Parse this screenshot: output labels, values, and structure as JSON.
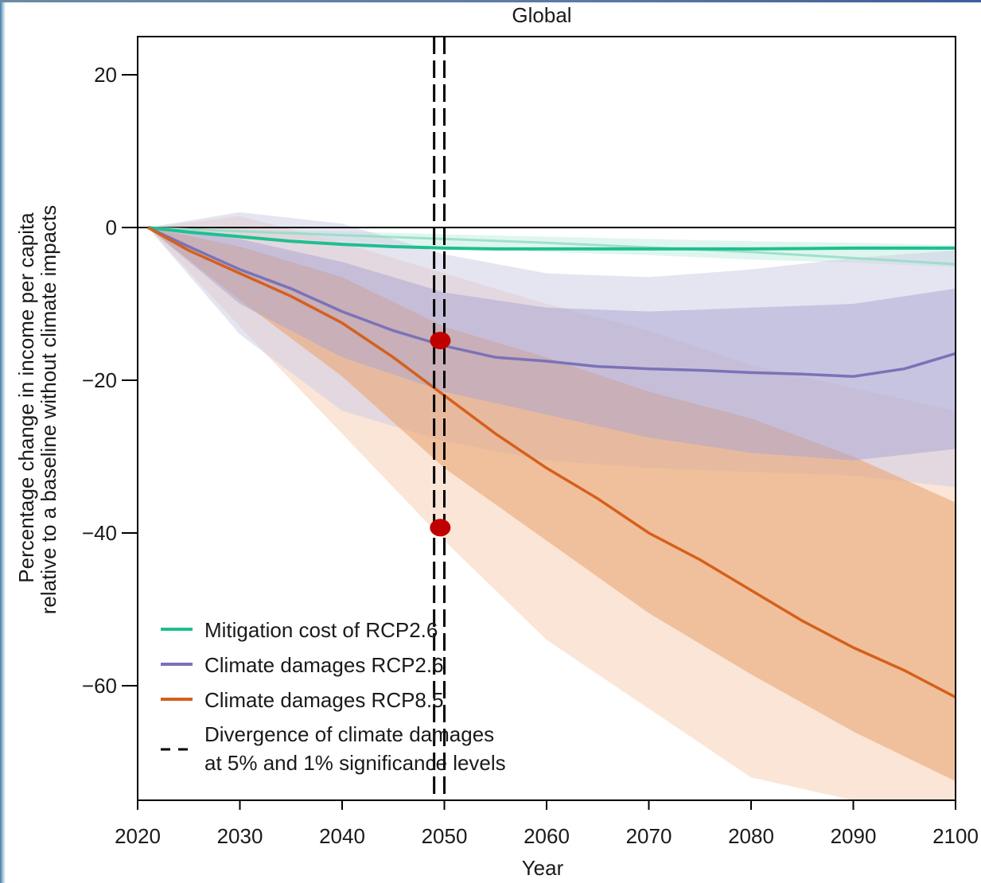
{
  "chart_data": {
    "type": "line",
    "title": "Global",
    "xlabel": "Year",
    "ylabel_line1": "Percentage change in income per capita",
    "ylabel_line2": "relative to a baseline without climate impacts",
    "xlim": [
      2020,
      2100
    ],
    "ylim": [
      -75,
      25
    ],
    "x_ticks": [
      2020,
      2030,
      2040,
      2050,
      2060,
      2070,
      2080,
      2090,
      2100
    ],
    "y_ticks": [
      20,
      0,
      -20,
      -40,
      -60
    ],
    "y_tick_labels": [
      "20",
      "0",
      "−20",
      "−40",
      "−60"
    ],
    "grid": false,
    "legend_placement": "bottom-left",
    "series": [
      {
        "name": "Mitigation cost of RCP2.6",
        "color": "#1fbf8f",
        "x": [
          2021,
          2025,
          2030,
          2035,
          2040,
          2045,
          2050,
          2055,
          2060,
          2070,
          2080,
          2090,
          2100
        ],
        "values": [
          0,
          -0.6,
          -1.2,
          -1.8,
          -2.2,
          -2.5,
          -2.7,
          -2.8,
          -2.8,
          -2.8,
          -2.8,
          -2.7,
          -2.7
        ],
        "secondary": {
          "x": [
            2021,
            2030,
            2040,
            2050,
            2060,
            2070,
            2080,
            2090,
            2100
          ],
          "values": [
            0,
            -0.5,
            -1.0,
            -1.5,
            -2.0,
            -2.6,
            -3.2,
            -4.0,
            -4.8
          ]
        },
        "band": {
          "x": [
            2021,
            2030,
            2040,
            2050,
            2060,
            2070,
            2080,
            2090,
            2100
          ],
          "upper": [
            0,
            -0.2,
            -0.5,
            -0.9,
            -1.2,
            -1.5,
            -1.8,
            -2.0,
            -2.3
          ],
          "lower": [
            0,
            -1.0,
            -1.8,
            -2.6,
            -3.2,
            -3.6,
            -4.2,
            -4.6,
            -5.2
          ]
        }
      },
      {
        "name": "Climate damages RCP2.6",
        "color": "#7b72b8",
        "x": [
          2021,
          2025,
          2030,
          2035,
          2040,
          2045,
          2050,
          2055,
          2060,
          2065,
          2070,
          2075,
          2080,
          2085,
          2090,
          2095,
          2100
        ],
        "values": [
          0,
          -2.5,
          -5.5,
          -8.0,
          -11.0,
          -13.5,
          -15.5,
          -17.0,
          -17.5,
          -18.2,
          -18.5,
          -18.7,
          -19.0,
          -19.2,
          -19.5,
          -18.5,
          -16.5
        ],
        "band_inner": {
          "x": [
            2021,
            2030,
            2040,
            2050,
            2060,
            2070,
            2080,
            2090,
            2100
          ],
          "upper": [
            0,
            -1.5,
            -4.5,
            -8.5,
            -10.5,
            -11.0,
            -10.5,
            -10.0,
            -8.0
          ],
          "lower": [
            0,
            -10.0,
            -17.0,
            -21.5,
            -24.5,
            -27.5,
            -29.5,
            -30.5,
            -29.0
          ]
        },
        "band_outer": {
          "x": [
            2021,
            2030,
            2040,
            2050,
            2060,
            2070,
            2080,
            2090,
            2100
          ],
          "upper": [
            0,
            2.0,
            0.5,
            -3.5,
            -6.0,
            -6.5,
            -5.5,
            -4.0,
            -3.0
          ],
          "lower": [
            0,
            -14.0,
            -24.0,
            -28.0,
            -30.5,
            -31.5,
            -32.0,
            -32.5,
            -34.0
          ]
        }
      },
      {
        "name": "Climate damages RCP8.5",
        "color": "#d5601b",
        "x": [
          2021,
          2025,
          2030,
          2035,
          2040,
          2045,
          2050,
          2055,
          2060,
          2065,
          2070,
          2075,
          2080,
          2085,
          2090,
          2095,
          2100
        ],
        "values": [
          0,
          -3.0,
          -6.0,
          -9.0,
          -12.5,
          -17.0,
          -22.0,
          -27.0,
          -31.5,
          -35.5,
          -40.0,
          -43.5,
          -47.5,
          -51.5,
          -55.0,
          -58.0,
          -61.5
        ],
        "band_inner": {
          "x": [
            2021,
            2030,
            2040,
            2050,
            2060,
            2070,
            2080,
            2090,
            2100
          ],
          "upper": [
            0,
            -2.5,
            -6.5,
            -13.0,
            -17.0,
            -21.5,
            -25.0,
            -30.0,
            -36.0
          ],
          "lower": [
            0,
            -9.5,
            -19.5,
            -31.5,
            -41.0,
            -50.5,
            -58.5,
            -66.0,
            -72.5
          ]
        },
        "band_outer": {
          "x": [
            2021,
            2030,
            2040,
            2050,
            2060,
            2070,
            2080,
            2090,
            2100
          ],
          "upper": [
            0,
            1.5,
            -2.0,
            -6.0,
            -10.0,
            -13.5,
            -18.0,
            -21.0,
            -24.0
          ],
          "lower": [
            0,
            -13.0,
            -27.0,
            -41.0,
            -54.0,
            -63.0,
            -72.0,
            -76.0,
            -78.0
          ]
        }
      }
    ],
    "divergence_lines": {
      "label_line1": "Divergence of climate damages",
      "label_line2": "at 5% and 1% significance levels",
      "x": [
        2049,
        2050
      ],
      "color": "#000000"
    },
    "markers": {
      "color": "#c00000",
      "points": [
        {
          "x": 2049.6,
          "y": -14.8
        },
        {
          "x": 2049.6,
          "y": -39.3
        }
      ]
    }
  }
}
